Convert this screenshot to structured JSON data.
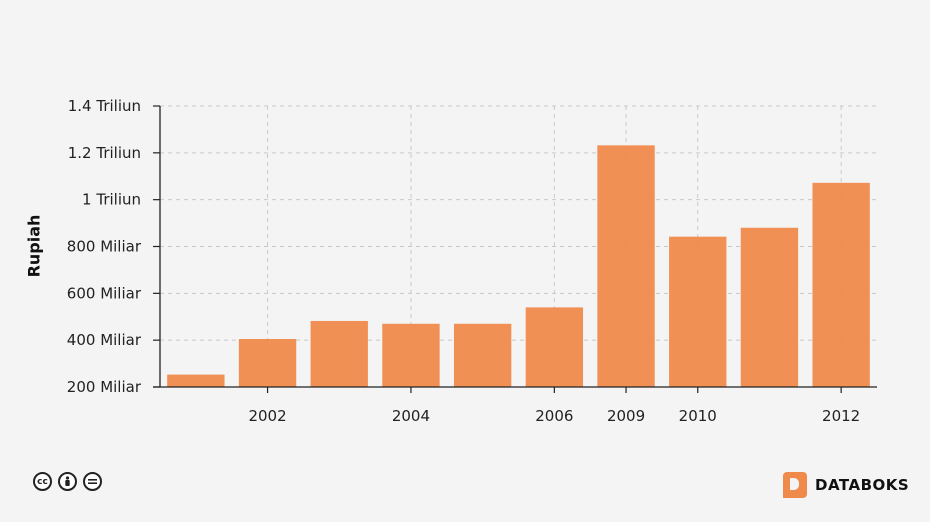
{
  "chart_data": {
    "type": "bar",
    "ylabel": "Rupiah",
    "xlabel": "",
    "ylim": [
      200,
      1400
    ],
    "y_unit": "billion rupiah",
    "y_ticks": [
      {
        "value": 200,
        "label": "200 Miliar"
      },
      {
        "value": 400,
        "label": "400 Miliar"
      },
      {
        "value": 600,
        "label": "600 Miliar"
      },
      {
        "value": 800,
        "label": "800 Miliar"
      },
      {
        "value": 1000,
        "label": "1 Triliun"
      },
      {
        "value": 1200,
        "label": "1.2 Triliun"
      },
      {
        "value": 1400,
        "label": "1.4 Triliun"
      }
    ],
    "categories": [
      "",
      "2002",
      "",
      "2004",
      "",
      "2006",
      "2009",
      "2010",
      "",
      "2012"
    ],
    "values": [
      253,
      405,
      482,
      470,
      470,
      540,
      1232,
      842,
      880,
      1072
    ],
    "bar_color": "#f08a4b",
    "grid": true
  },
  "footer": {
    "license_icons": [
      "cc-icon",
      "by-icon",
      "nd-icon"
    ],
    "brand": "DATABOKS"
  }
}
